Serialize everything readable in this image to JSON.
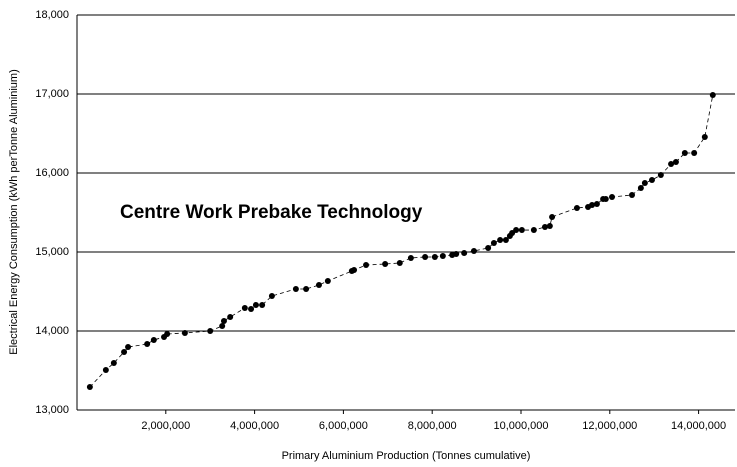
{
  "chart_data": {
    "type": "line",
    "annotation": "Centre Work Prebake Technology",
    "xlabel": "Primary Aluminium Production (Tonnes cumulative)",
    "ylabel": "Electrical Energy Consumption (kWh perTonne Aluminium)",
    "x": [
      290000,
      650000,
      830000,
      1060000,
      1150000,
      1580000,
      1730000,
      1960000,
      2030000,
      2430000,
      3000000,
      3270000,
      3310000,
      3450000,
      3780000,
      3920000,
      4030000,
      4170000,
      4390000,
      4930000,
      5160000,
      5450000,
      5650000,
      6190000,
      6240000,
      6510000,
      6940000,
      7270000,
      7520000,
      7840000,
      8060000,
      8240000,
      8450000,
      8540000,
      8720000,
      8940000,
      9260000,
      9390000,
      9530000,
      9660000,
      9750000,
      9800000,
      9890000,
      10020000,
      10290000,
      10540000,
      10650000,
      10700000,
      11260000,
      11510000,
      11600000,
      11710000,
      11850000,
      11910000,
      12050000,
      12500000,
      12700000,
      12790000,
      12950000,
      13150000,
      13380000,
      13490000,
      13690000,
      13900000,
      14140000,
      14320000
    ],
    "series": [
      {
        "color": "#000000",
        "values": [
          13291,
          13506,
          13595,
          13734,
          13797,
          13835,
          13886,
          13924,
          13962,
          13975,
          14000,
          14063,
          14127,
          14177,
          14291,
          14278,
          14329,
          14329,
          14443,
          14532,
          14532,
          14582,
          14633,
          14759,
          14772,
          14835,
          14848,
          14861,
          14924,
          14937,
          14937,
          14949,
          14962,
          14975,
          14987,
          15013,
          15051,
          15114,
          15152,
          15152,
          15203,
          15241,
          15278,
          15278,
          15278,
          15316,
          15329,
          15443,
          15557,
          15570,
          15595,
          15608,
          15671,
          15671,
          15696,
          15722,
          15810,
          15873,
          15911,
          15975,
          16114,
          16139,
          16253,
          16253,
          16456,
          16987
        ]
      }
    ],
    "xlim": [
      0,
      14820000
    ],
    "xticks": [
      {
        "value": 2000000,
        "label": "2,000,000"
      },
      {
        "value": 4000000,
        "label": "4,000,000"
      },
      {
        "value": 6000000,
        "label": "6,000,000"
      },
      {
        "value": 8000000,
        "label": "8,000,000"
      },
      {
        "value": 10000000,
        "label": "10,000,000"
      },
      {
        "value": 12000000,
        "label": "12,000,000"
      },
      {
        "value": 14000000,
        "label": "14,000,000"
      }
    ],
    "ylim": [
      13000,
      18000
    ],
    "yticks": [
      {
        "value": 13000,
        "label": "13,000"
      },
      {
        "value": 14000,
        "label": "14,000"
      },
      {
        "value": 15000,
        "label": "15,000"
      },
      {
        "value": 16000,
        "label": "16,000"
      },
      {
        "value": 17000,
        "label": "17,000"
      },
      {
        "value": 18000,
        "label": "18,000"
      }
    ],
    "grid": true
  }
}
